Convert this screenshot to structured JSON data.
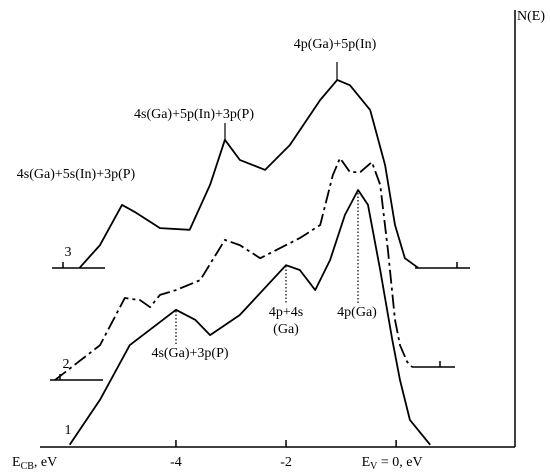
{
  "chart_data": {
    "type": "line",
    "ylabel": "N(E)",
    "xlabel": {
      "main": "E",
      "sub": "CB",
      "rest": ", eV"
    },
    "xlim": [
      -6.47,
      2.16
    ],
    "xticks": [
      -4,
      -2,
      {
        "value": 0,
        "label": "E",
        "label_sub": "V",
        "label_rest": " = 0, eV"
      }
    ],
    "ylim": [
      0,
      100
    ],
    "color": "#000000",
    "series": [
      {
        "name": "1",
        "dashed": false,
        "x": [
          -5.93,
          -5.38,
          -4.84,
          -4,
          -3.65,
          -3.38,
          -2.84,
          -2,
          -1.75,
          -1.47,
          -1.2,
          -0.93,
          -0.69,
          -0.51,
          -0.29,
          -0.07,
          0.07,
          0.25,
          0.62
        ],
        "values": [
          0.5,
          10.8,
          23.3,
          31.4,
          29.1,
          25.6,
          30.2,
          41.6,
          40.5,
          35.9,
          42.8,
          53.1,
          58.8,
          55.4,
          40.5,
          24.5,
          15.3,
          6.2,
          0.5
        ]
      },
      {
        "name": "2",
        "dashed": true,
        "x": [
          -6.2,
          -5.38,
          -4.93,
          -4.65,
          -4.47,
          -4.29,
          -4,
          -3.56,
          -3.11,
          -2.84,
          -2.47,
          -2,
          -1.75,
          -1.38,
          -1.15,
          -1.02,
          -0.84,
          -0.65,
          -0.44,
          -0.29,
          -0.15,
          -0.02,
          0.07,
          0.2,
          0.29
        ],
        "values": [
          15.3,
          23.3,
          34.1,
          33.6,
          32.0,
          34.8,
          35.9,
          38.2,
          47.4,
          46.2,
          43.2,
          46.2,
          47.8,
          50.8,
          62.2,
          66.1,
          62.9,
          62.9,
          65.2,
          60.0,
          45.1,
          29.1,
          23.3,
          19.5,
          18.3
        ]
      },
      {
        "name": "3",
        "dashed": false,
        "x": [
          -5.75,
          -5.38,
          -4.98,
          -4.75,
          -4.29,
          -3.75,
          -3.38,
          -3.11,
          -2.84,
          -2.38,
          -1.93,
          -1.38,
          -1.07,
          -0.84,
          -0.47,
          -0.2,
          -0.02,
          0.16,
          0.4
        ],
        "values": [
          41.0,
          46.2,
          55.4,
          53.8,
          50.1,
          49.7,
          60.0,
          70.3,
          65.7,
          63.4,
          69.1,
          79.4,
          84.0,
          82.8,
          77.1,
          64.5,
          50.8,
          43.2,
          41.0
        ]
      }
    ],
    "annotations": [
      {
        "text": "4p(Ga)+5p(In)"
      },
      {
        "text": "4s(Ga)+5p(In)+3p(P)"
      },
      {
        "text": "4s(Ga)+5s(In)+3p(P)"
      },
      {
        "text": "4p+4s",
        "text2": "(Ga)"
      },
      {
        "text": "4p(Ga)"
      },
      {
        "text": "4s(Ga)+3p(P)"
      }
    ]
  }
}
